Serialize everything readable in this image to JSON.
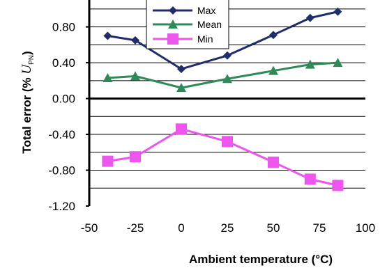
{
  "chart_data": {
    "type": "line",
    "x": [
      -40,
      -25,
      0,
      25,
      50,
      70,
      85
    ],
    "series": [
      {
        "name": "Max",
        "values": [
          0.7,
          0.65,
          0.33,
          0.48,
          0.71,
          0.9,
          0.97
        ],
        "color": "#1f2d6b",
        "marker": "diamond"
      },
      {
        "name": "Mean",
        "values": [
          0.23,
          0.25,
          0.12,
          0.22,
          0.31,
          0.38,
          0.4
        ],
        "color": "#2e8b57",
        "marker": "triangle"
      },
      {
        "name": "Min",
        "values": [
          -0.7,
          -0.65,
          -0.34,
          -0.48,
          -0.71,
          -0.9,
          -0.97
        ],
        "color": "#ee55ee",
        "marker": "square"
      }
    ],
    "xlim": [
      -50,
      100
    ],
    "ylim": [
      -1.2,
      1.1
    ],
    "xticks": [
      -50,
      -25,
      0,
      25,
      50,
      75,
      100
    ],
    "xtick_labels": [
      "-50",
      "-25",
      "0",
      "25",
      "50",
      "75",
      "100"
    ],
    "yticks": [
      -1.2,
      -0.8,
      -0.4,
      0.0,
      0.4,
      0.8
    ],
    "ytick_labels": [
      "-1.20",
      "-0.80",
      "-0.40",
      "0.00",
      "0.40",
      "0.80"
    ],
    "xlabel": "Ambient temperature (°C)",
    "ylabel": {
      "prefix": "Total error  (% ",
      "symbol": "U",
      "subscript": "PN",
      "suffix": ")"
    },
    "grid": "horizontal",
    "legend_position": "top-center",
    "zero_line": true
  }
}
